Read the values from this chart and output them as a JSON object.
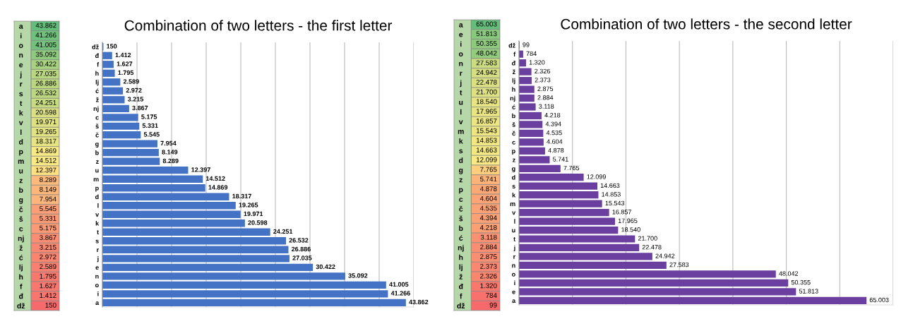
{
  "chart_data": [
    {
      "type": "heatmap",
      "categories": [
        null
      ],
      "y_categories": [
        "a",
        "i",
        "o",
        "n",
        "e",
        "j",
        "r",
        "s",
        "t",
        "k",
        "v",
        "l",
        "d",
        "p",
        "m",
        "u",
        "z",
        "b",
        "g",
        "č",
        "š",
        "c",
        "nj",
        "ž",
        "ć",
        "lj",
        "h",
        "f",
        "đ",
        "dž"
      ],
      "cells": [
        [
          43862
        ],
        [
          41266
        ],
        [
          41005
        ],
        [
          35092
        ],
        [
          30422
        ],
        [
          27035
        ],
        [
          26886
        ],
        [
          26532
        ],
        [
          24251
        ],
        [
          20598
        ],
        [
          19971
        ],
        [
          19265
        ],
        [
          18317
        ],
        [
          14869
        ],
        [
          14512
        ],
        [
          12397
        ],
        [
          8289
        ],
        [
          8149
        ],
        [
          7954
        ],
        [
          5545
        ],
        [
          5331
        ],
        [
          5175
        ],
        [
          3867
        ],
        [
          3215
        ],
        [
          2972
        ],
        [
          2589
        ],
        [
          1795
        ],
        [
          1627
        ],
        [
          1412
        ],
        [
          150
        ]
      ],
      "cell_labels": [
        [
          "43.862"
        ],
        [
          "41.266"
        ],
        [
          "41.005"
        ],
        [
          "35.092"
        ],
        [
          "30.422"
        ],
        [
          "27.035"
        ],
        [
          "26.886"
        ],
        [
          "26.532"
        ],
        [
          "24.251"
        ],
        [
          "20.598"
        ],
        [
          "19.971"
        ],
        [
          "19.265"
        ],
        [
          "18.317"
        ],
        [
          "14.869"
        ],
        [
          "14.512"
        ],
        [
          "12.397"
        ],
        [
          "8.289"
        ],
        [
          "8.149"
        ],
        [
          "7.954"
        ],
        [
          "5.545"
        ],
        [
          "5.331"
        ],
        [
          "5.175"
        ],
        [
          "3.867"
        ],
        [
          "3.215"
        ],
        [
          "2.972"
        ],
        [
          "2.589"
        ],
        [
          "1.795"
        ],
        [
          "1.627"
        ],
        [
          "1.412"
        ],
        [
          "150"
        ]
      ]
    },
    {
      "type": "bar",
      "orientation": "horizontal",
      "title": "Combination of two letters - the first letter",
      "color": "#4472c4",
      "categories": [
        "dž",
        "đ",
        "f",
        "h",
        "lj",
        "ć",
        "ž",
        "nj",
        "c",
        "š",
        "č",
        "g",
        "b",
        "z",
        "u",
        "m",
        "p",
        "d",
        "l",
        "v",
        "k",
        "t",
        "s",
        "r",
        "j",
        "e",
        "n",
        "o",
        "i",
        "a"
      ],
      "values": [
        150,
        1412,
        1627,
        1795,
        2589,
        2972,
        3215,
        3867,
        5175,
        5331,
        5545,
        7954,
        8149,
        8289,
        12397,
        14512,
        14869,
        18317,
        19265,
        19971,
        20598,
        24251,
        26532,
        26886,
        27035,
        30422,
        35092,
        41005,
        41266,
        43862
      ],
      "value_labels": [
        "150",
        "1.412",
        "1.627",
        "1.795",
        "2.589",
        "2.972",
        "3.215",
        "3.867",
        "5.175",
        "5.331",
        "5.545",
        "7.954",
        "8.149",
        "8.289",
        "12.397",
        "14.512",
        "14.869",
        "18.317",
        "19.265",
        "19.971",
        "20.598",
        "24.251",
        "26.532",
        "26.886",
        "27.035",
        "30.422",
        "35.092",
        "41.005",
        "41.266",
        "43.862"
      ],
      "xlim": [
        0,
        45000
      ],
      "xticks": [
        {
          "value": 0,
          "label": null
        },
        {
          "value": 5000,
          "label": null
        },
        {
          "value": 10000,
          "label": null
        },
        {
          "value": 15000,
          "label": null
        },
        {
          "value": 20000,
          "label": null
        },
        {
          "value": 25000,
          "label": null
        },
        {
          "value": 30000,
          "label": null
        },
        {
          "value": 35000,
          "label": null
        },
        {
          "value": 40000,
          "label": null
        },
        {
          "value": 45000,
          "label": null
        }
      ],
      "tick_labels": "y",
      "grid": "x"
    },
    {
      "type": "heatmap",
      "categories": [
        null
      ],
      "y_categories": [
        "a",
        "e",
        "i",
        "o",
        "n",
        "r",
        "j",
        "t",
        "u",
        "l",
        "v",
        "m",
        "k",
        "s",
        "d",
        "g",
        "z",
        "p",
        "c",
        "č",
        "š",
        "b",
        "ć",
        "nj",
        "h",
        "lj",
        "ž",
        "đ",
        "f",
        "dž"
      ],
      "cells": [
        [
          65003
        ],
        [
          51813
        ],
        [
          50355
        ],
        [
          48042
        ],
        [
          27583
        ],
        [
          24942
        ],
        [
          22478
        ],
        [
          21700
        ],
        [
          18540
        ],
        [
          17965
        ],
        [
          16857
        ],
        [
          15543
        ],
        [
          14853
        ],
        [
          14663
        ],
        [
          12099
        ],
        [
          7765
        ],
        [
          5741
        ],
        [
          4878
        ],
        [
          4604
        ],
        [
          4535
        ],
        [
          4394
        ],
        [
          4218
        ],
        [
          3118
        ],
        [
          2884
        ],
        [
          2875
        ],
        [
          2373
        ],
        [
          2326
        ],
        [
          1320
        ],
        [
          784
        ],
        [
          99
        ]
      ],
      "cell_labels": [
        [
          "65.003"
        ],
        [
          "51.813"
        ],
        [
          "50.355"
        ],
        [
          "48.042"
        ],
        [
          "27.583"
        ],
        [
          "24.942"
        ],
        [
          "22.478"
        ],
        [
          "21.700"
        ],
        [
          "18.540"
        ],
        [
          "17.965"
        ],
        [
          "16.857"
        ],
        [
          "15.543"
        ],
        [
          "14.853"
        ],
        [
          "14.663"
        ],
        [
          "12.099"
        ],
        [
          "7.765"
        ],
        [
          "5.741"
        ],
        [
          "4.878"
        ],
        [
          "4.604"
        ],
        [
          "4.535"
        ],
        [
          "4.394"
        ],
        [
          "4.218"
        ],
        [
          "3.118"
        ],
        [
          "2.884"
        ],
        [
          "2.875"
        ],
        [
          "2.373"
        ],
        [
          "2.326"
        ],
        [
          "1.320"
        ],
        [
          "784"
        ],
        [
          "99"
        ]
      ]
    },
    {
      "type": "bar",
      "orientation": "horizontal",
      "title": "Combination of two letters - the second letter",
      "color": "#6b3fa0",
      "categories": [
        "dž",
        "f",
        "đ",
        "ž",
        "lj",
        "h",
        "nj",
        "ć",
        "b",
        "š",
        "č",
        "c",
        "p",
        "z",
        "g",
        "d",
        "s",
        "k",
        "m",
        "v",
        "l",
        "u",
        "t",
        "j",
        "r",
        "n",
        "o",
        "i",
        "e",
        "a"
      ],
      "values": [
        99,
        784,
        1320,
        2326,
        2373,
        2875,
        2884,
        3118,
        4218,
        4394,
        4535,
        4604,
        4878,
        5741,
        7765,
        12099,
        14663,
        14853,
        15543,
        16857,
        17965,
        18540,
        21700,
        22478,
        24942,
        27583,
        48042,
        50355,
        51813,
        65003
      ],
      "value_labels": [
        "99",
        "784",
        "1.320",
        "2.326",
        "2.373",
        "2.875",
        "2.884",
        "3.118",
        "4.218",
        "4.394",
        "4.535",
        "4.604",
        "4.878",
        "5.741",
        "7.765",
        "12.099",
        "14.663",
        "14.853",
        "15.543",
        "16.857",
        "17.965",
        "18.540",
        "21.700",
        "22.478",
        "24.942",
        "27.583",
        "48.042",
        "50.355",
        "51.813",
        "65.003"
      ],
      "xlim": [
        0,
        70000
      ],
      "xticks": [
        {
          "value": 0,
          "label": null
        },
        {
          "value": 10000,
          "label": null
        },
        {
          "value": 20000,
          "label": null
        },
        {
          "value": 30000,
          "label": null
        },
        {
          "value": 40000,
          "label": null
        },
        {
          "value": 50000,
          "label": null
        },
        {
          "value": 60000,
          "label": null
        },
        {
          "value": 70000,
          "label": null
        }
      ],
      "tick_labels": "y",
      "grid": "x"
    }
  ]
}
